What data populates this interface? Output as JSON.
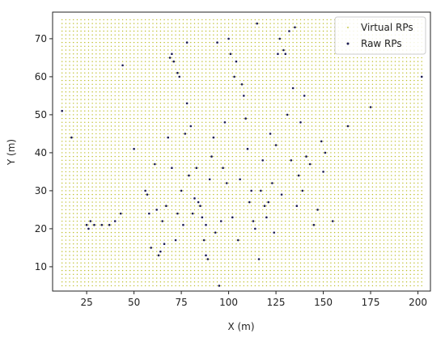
{
  "chart_data": {
    "type": "scatter",
    "x_label": "X (m)",
    "y_label": "Y (m)",
    "xlim": [
      7,
      206.6
    ],
    "ylim": [
      3.6,
      77
    ],
    "xticks": [
      25,
      50,
      75,
      100,
      125,
      150,
      175,
      200
    ],
    "yticks": [
      10,
      20,
      30,
      40,
      50,
      60,
      70
    ],
    "legend": "upper right",
    "series": [
      {
        "name": "Virtual RPs",
        "color": "#bcbd22",
        "grid_x": [
          12,
          14,
          16,
          18,
          20,
          22,
          24,
          26,
          28,
          30,
          32,
          34,
          36,
          38,
          40,
          42,
          44,
          46,
          48,
          50,
          52,
          54,
          56,
          58,
          60,
          62,
          64,
          66,
          68,
          70,
          72,
          74,
          76,
          78,
          80,
          82,
          84,
          86,
          88,
          90,
          92,
          94,
          96,
          98,
          100,
          102,
          104,
          106,
          108,
          110,
          112,
          114,
          116,
          118,
          120,
          122,
          124,
          126,
          128,
          130,
          132,
          134,
          136,
          138,
          140,
          142,
          144,
          146,
          148,
          150,
          152,
          154,
          156,
          158,
          160,
          162,
          164,
          166,
          168,
          170,
          172,
          174,
          176,
          178,
          180,
          182,
          184,
          186,
          188,
          190,
          192,
          194,
          196,
          198,
          200,
          202
        ],
        "grid_y": [
          5,
          6,
          7,
          8,
          9,
          10,
          11,
          12,
          13,
          14,
          15,
          16,
          17,
          18,
          19,
          20,
          21,
          22,
          23,
          24,
          25,
          26,
          27,
          28,
          29,
          30,
          31,
          32,
          33,
          34,
          35,
          36,
          37,
          38,
          39,
          40,
          41,
          42,
          43,
          44,
          45,
          46,
          47,
          48,
          49,
          50,
          51,
          52,
          53,
          54,
          55,
          56,
          57,
          58,
          59,
          60,
          61,
          62,
          63,
          64,
          65,
          66,
          67,
          68,
          69,
          70,
          71,
          72,
          73,
          74,
          75
        ]
      },
      {
        "name": "Raw RPs",
        "color": "#1a1a4e",
        "x": [
          12,
          17,
          25,
          26,
          27,
          29,
          33,
          37,
          40,
          43,
          44,
          50,
          56,
          57,
          58,
          59,
          61,
          62,
          63,
          64,
          65,
          66,
          67,
          68,
          69,
          70,
          70,
          71,
          72,
          73,
          73,
          74,
          75,
          76,
          77,
          78,
          78,
          79,
          80,
          81,
          82,
          83,
          84,
          85,
          86,
          87,
          88,
          88,
          89,
          90,
          91,
          92,
          93,
          94,
          95,
          96,
          97,
          98,
          99,
          100,
          101,
          102,
          103,
          104,
          105,
          106,
          107,
          108,
          109,
          110,
          111,
          112,
          113,
          114,
          115,
          116,
          117,
          118,
          119,
          120,
          121,
          122,
          123,
          124,
          125,
          126,
          127,
          128,
          129,
          130,
          131,
          132,
          133,
          134,
          135,
          136,
          137,
          138,
          139,
          140,
          141,
          143,
          145,
          147,
          149,
          150,
          151,
          155,
          163,
          175,
          202
        ],
        "values": [
          51,
          44,
          21,
          20,
          22,
          21,
          21,
          21,
          22,
          24,
          63,
          41,
          30,
          29,
          24,
          15,
          37,
          25,
          13,
          14,
          22,
          16,
          26,
          44,
          65,
          66,
          36,
          64,
          17,
          61,
          24,
          60,
          30,
          21,
          45,
          53,
          69,
          34,
          47,
          24,
          28,
          36,
          27,
          26,
          23,
          17,
          21,
          13,
          12,
          33,
          39,
          44,
          19,
          69,
          5,
          22,
          36,
          48,
          32,
          70,
          66,
          23,
          60,
          64,
          17,
          33,
          58,
          55,
          49,
          41,
          27,
          30,
          22,
          20,
          74,
          12,
          30,
          38,
          26,
          23,
          27,
          45,
          32,
          19,
          42,
          66,
          70,
          29,
          67,
          66,
          50,
          72,
          38,
          57,
          73,
          26,
          34,
          48,
          30,
          55,
          39,
          37,
          21,
          25,
          43,
          35,
          40,
          22,
          47,
          52,
          60
        ]
      }
    ]
  }
}
